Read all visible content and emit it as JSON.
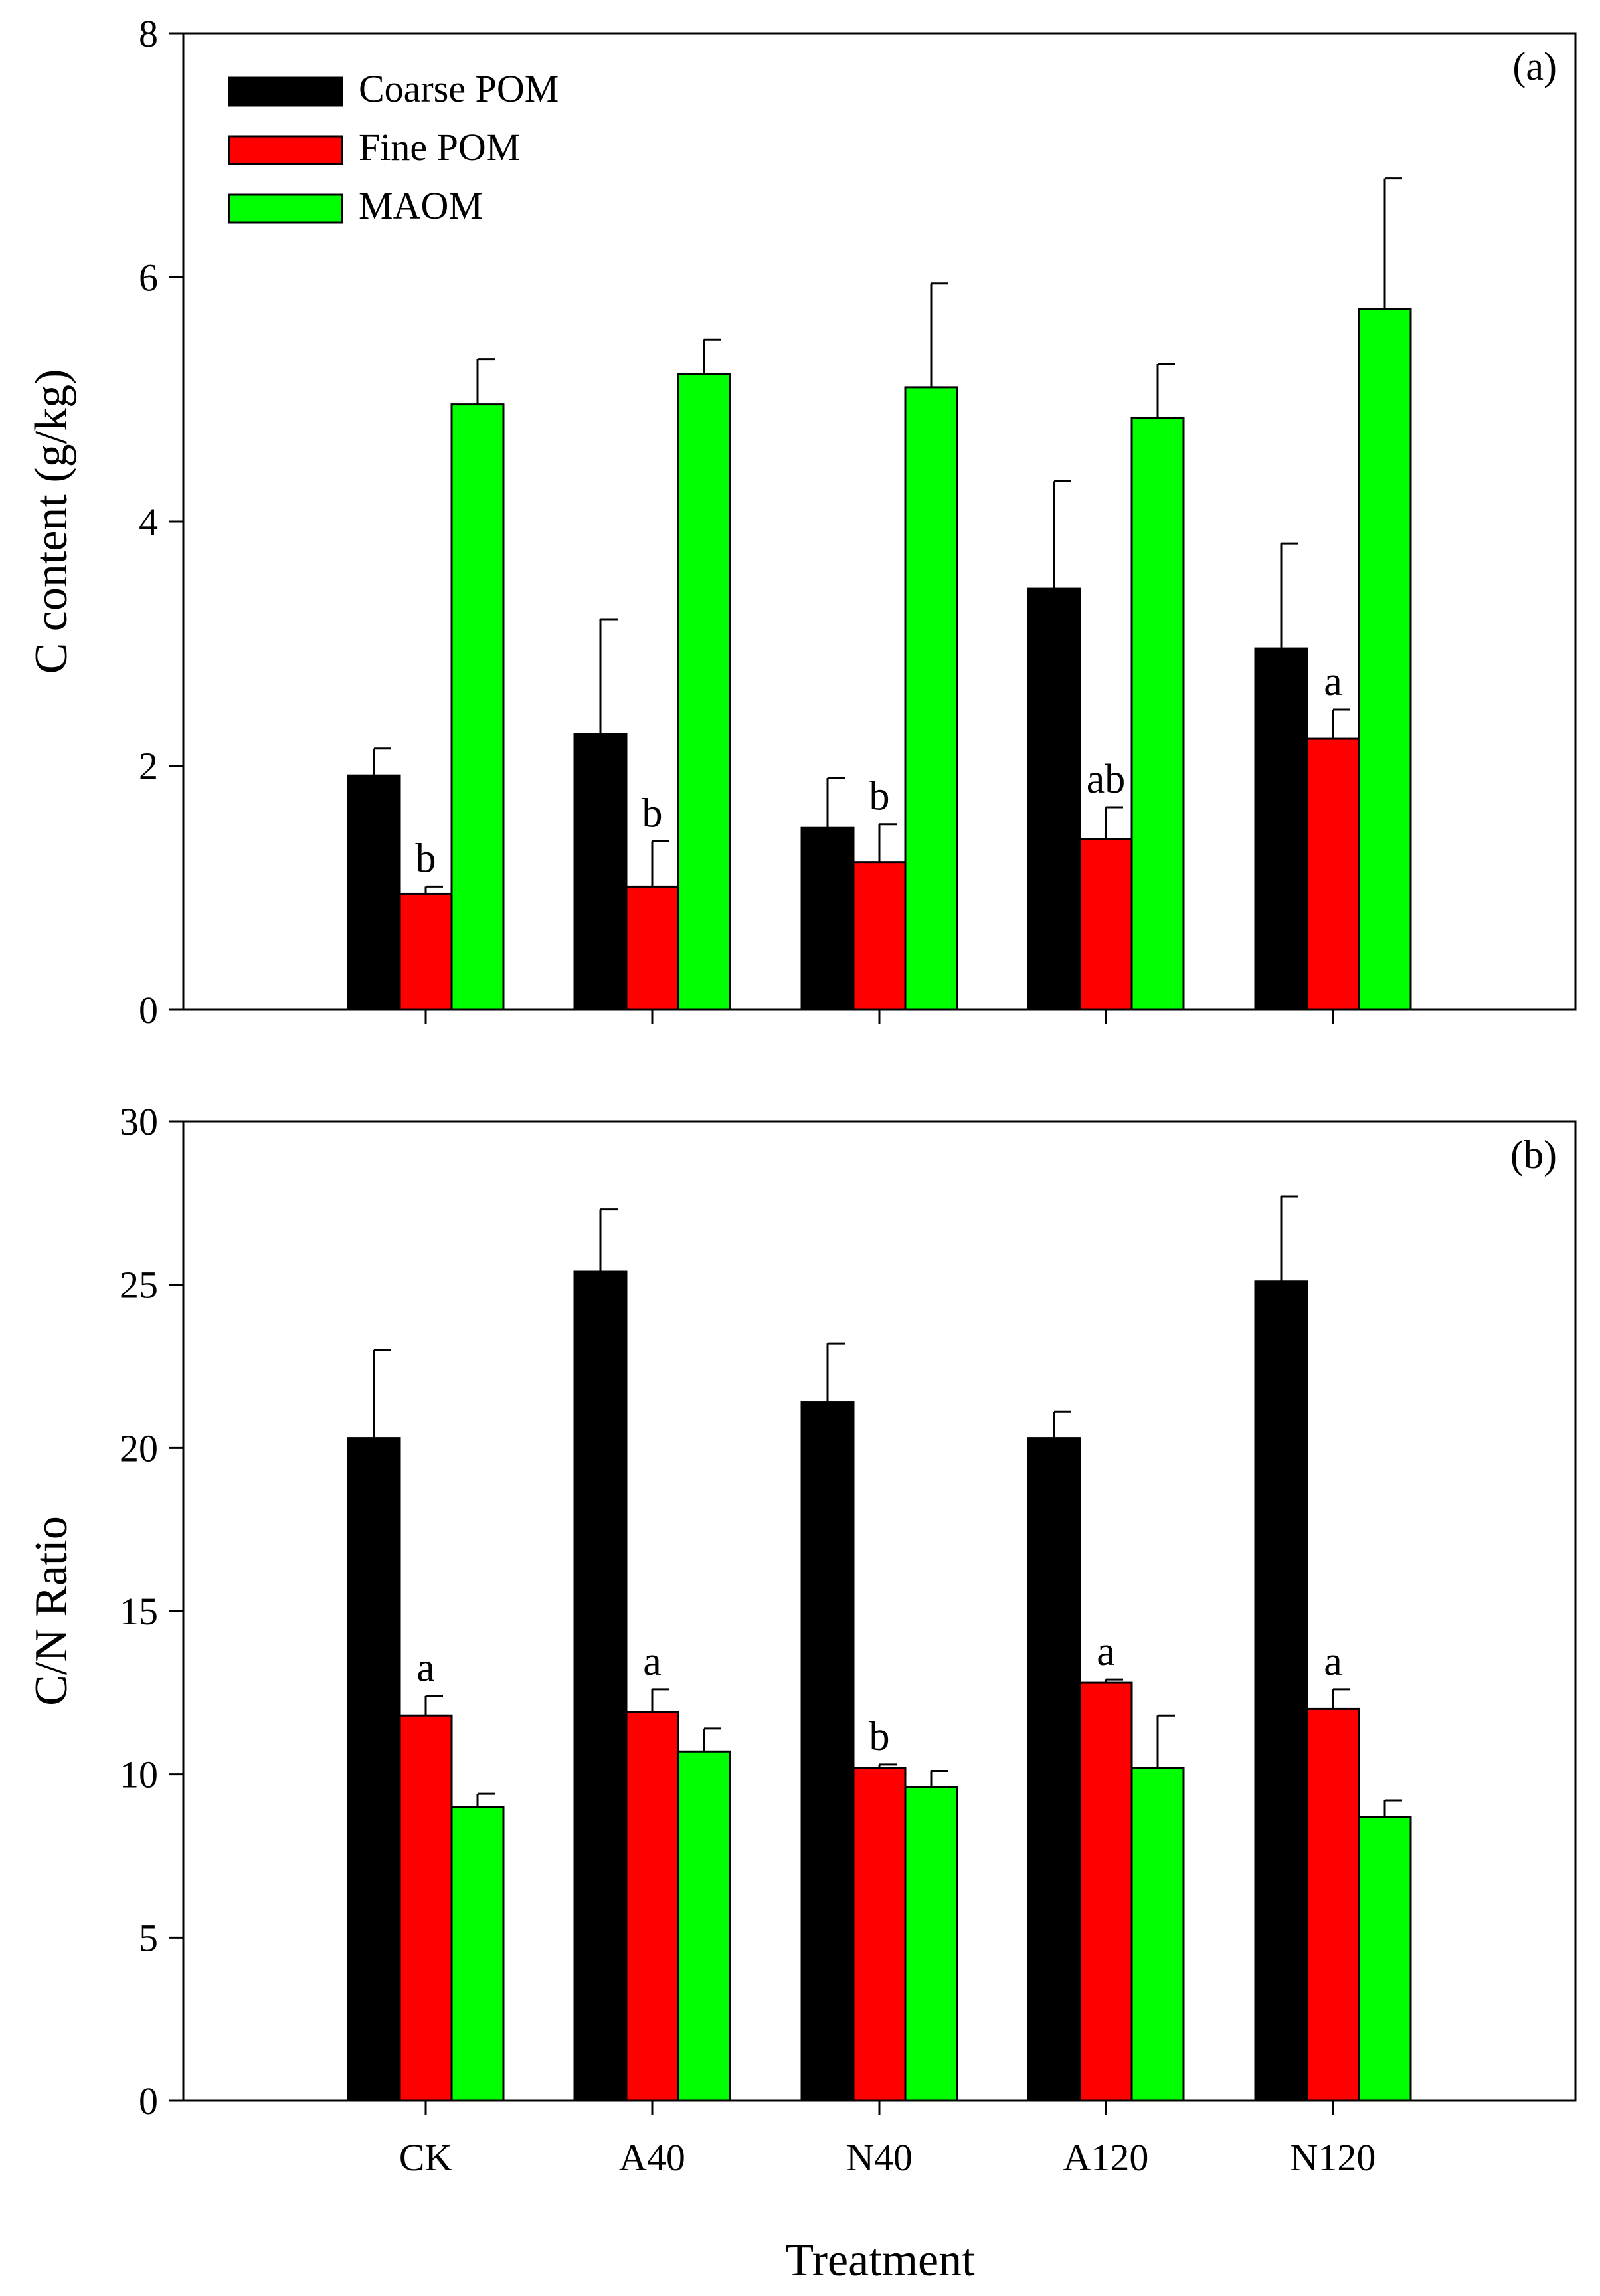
{
  "colors": {
    "coarse_pom": "#000000",
    "fine_pom": "#ff0000",
    "maom": "#00ff00",
    "axis": "#000000",
    "background": "#ffffff"
  },
  "legend": {
    "placement": "top-left",
    "items": [
      "Coarse POM",
      "Fine POM",
      "MAOM"
    ]
  },
  "xlabel": "Treatment",
  "chart_data": [
    {
      "type": "bar",
      "panel_label": "(a)",
      "ylabel": "C content (g/kg)",
      "ylim": [
        0,
        8
      ],
      "yticks": [
        0,
        2,
        4,
        6,
        8
      ],
      "categories": [
        "CK",
        "A40",
        "N40",
        "A120",
        "N120"
      ],
      "series": [
        {
          "name": "Coarse POM",
          "values": [
            1.92,
            2.26,
            1.49,
            3.45,
            2.96
          ],
          "errors": [
            0.22,
            0.94,
            0.41,
            0.88,
            0.86
          ]
        },
        {
          "name": "Fine POM",
          "values": [
            0.95,
            1.01,
            1.21,
            1.4,
            2.22
          ],
          "errors": [
            0.06,
            0.37,
            0.31,
            0.26,
            0.24
          ]
        },
        {
          "name": "MAOM",
          "values": [
            4.96,
            5.21,
            5.1,
            4.85,
            5.74
          ],
          "errors": [
            0.37,
            0.28,
            0.85,
            0.44,
            1.07
          ]
        }
      ],
      "annotations": [
        {
          "series": "Fine POM",
          "category": "CK",
          "text": "b"
        },
        {
          "series": "Fine POM",
          "category": "A40",
          "text": "b"
        },
        {
          "series": "Fine POM",
          "category": "N40",
          "text": "b"
        },
        {
          "series": "Fine POM",
          "category": "A120",
          "text": "ab"
        },
        {
          "series": "Fine POM",
          "category": "N120",
          "text": "a"
        }
      ],
      "show_x_tick_labels": false,
      "grid": false
    },
    {
      "type": "bar",
      "panel_label": "(b)",
      "ylabel": "C/N Ratio",
      "ylim": [
        0,
        30
      ],
      "yticks": [
        0,
        5,
        10,
        15,
        20,
        25,
        30
      ],
      "categories": [
        "CK",
        "A40",
        "N40",
        "A120",
        "N120"
      ],
      "series": [
        {
          "name": "Coarse POM",
          "values": [
            20.3,
            25.4,
            21.4,
            20.3,
            25.1
          ],
          "errors": [
            2.7,
            1.9,
            1.8,
            0.8,
            2.6
          ]
        },
        {
          "name": "Fine POM",
          "values": [
            11.8,
            11.9,
            10.2,
            12.8,
            12.0
          ],
          "errors": [
            0.6,
            0.7,
            0.1,
            0.1,
            0.6
          ]
        },
        {
          "name": "MAOM",
          "values": [
            9.0,
            10.7,
            9.6,
            10.2,
            8.7
          ],
          "errors": [
            0.4,
            0.7,
            0.5,
            1.6,
            0.5
          ]
        }
      ],
      "annotations": [
        {
          "series": "Fine POM",
          "category": "CK",
          "text": "a"
        },
        {
          "series": "Fine POM",
          "category": "A40",
          "text": "a"
        },
        {
          "series": "Fine POM",
          "category": "N40",
          "text": "b"
        },
        {
          "series": "Fine POM",
          "category": "A120",
          "text": "a"
        },
        {
          "series": "Fine POM",
          "category": "N120",
          "text": "a"
        }
      ],
      "show_x_tick_labels": true,
      "grid": false
    }
  ]
}
